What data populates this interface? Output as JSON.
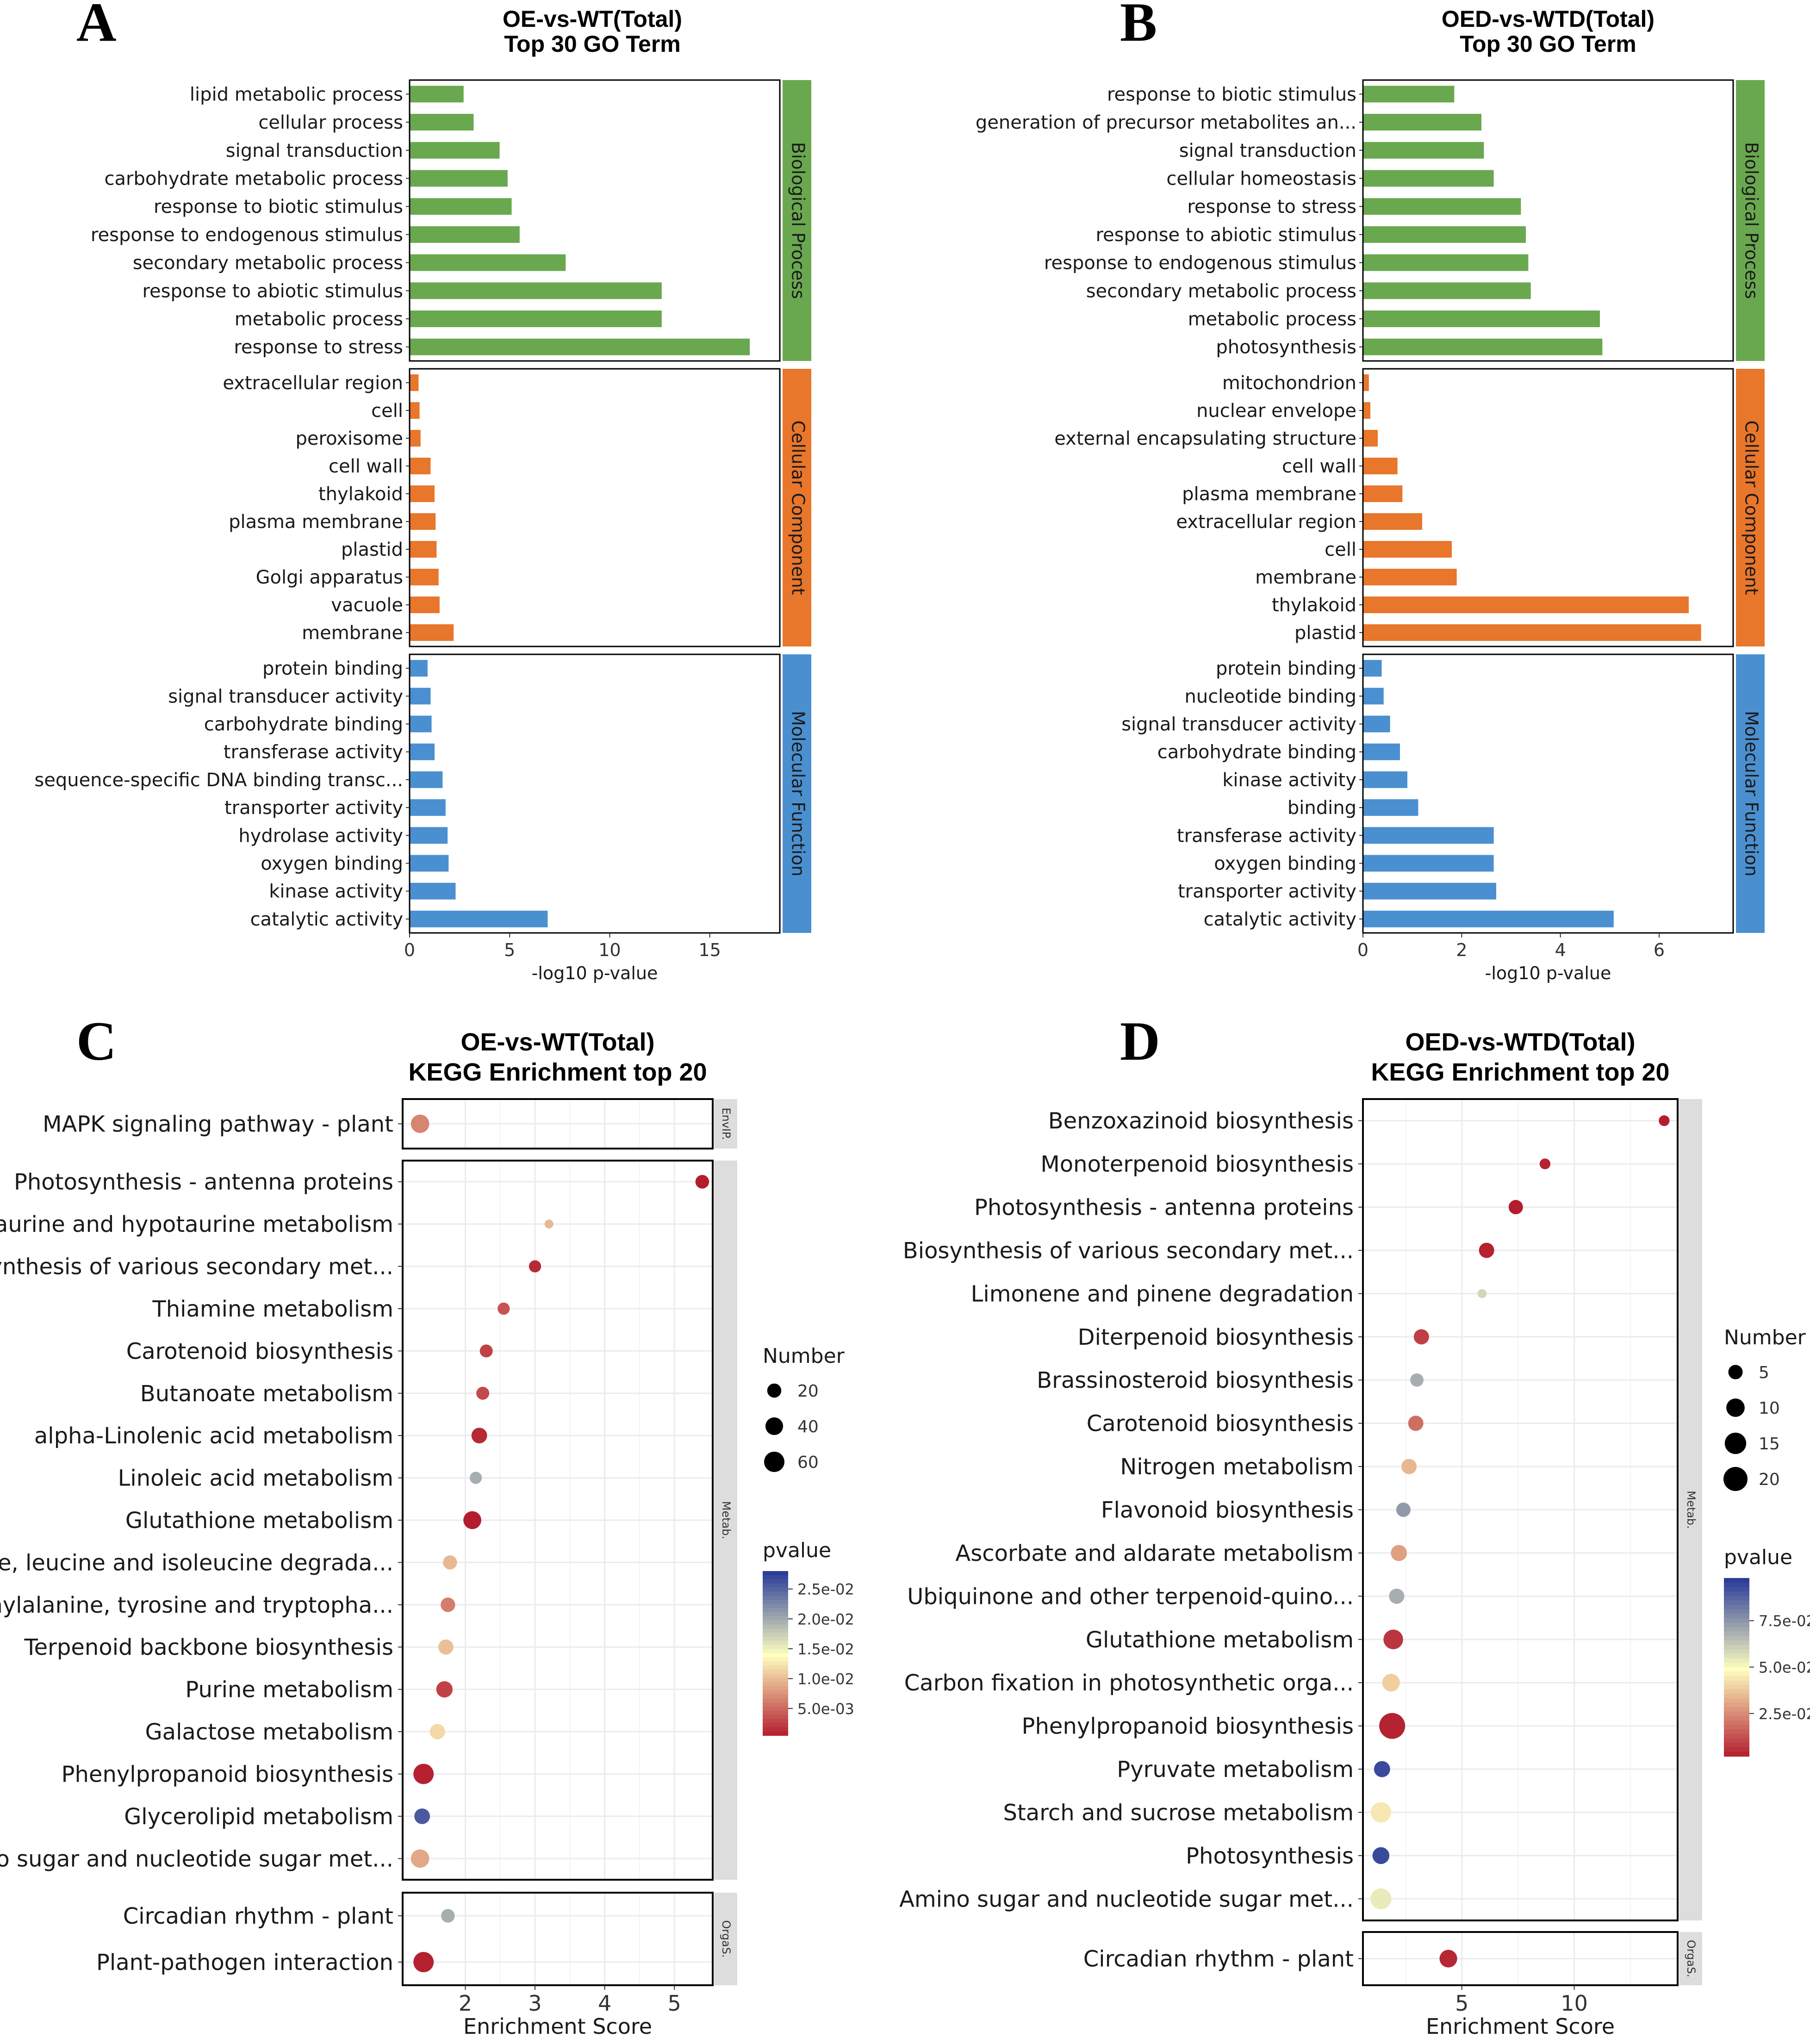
{
  "panels": [
    {
      "letter": "A",
      "title1": "OE-vs-WT(Total)",
      "title2": "Top 30 GO Term"
    },
    {
      "letter": "B",
      "title1": "OED-vs-WTD(Total)",
      "title2": "Top 30 GO Term"
    },
    {
      "letter": "C",
      "title1": "OE-vs-WT(Total)",
      "title2": "KEGG Enrichment top 20"
    },
    {
      "letter": "D",
      "title1": "OED-vs-WTD(Total)",
      "title2": "KEGG Enrichment top 20"
    }
  ],
  "colors": {
    "bp": "#6aa84f",
    "cc": "#e8762b",
    "mf": "#4a90d0",
    "strip": "#dddddd",
    "grid": "#ebebeb",
    "pv_low": "#b2182b",
    "pv_mid": "#ffffbf",
    "pv_high": "#2c3d99"
  },
  "chart_data": [
    {
      "type": "bar",
      "orientation": "horizontal",
      "title": "OE-vs-WT(Total) Top 30 GO Term",
      "xlabel": "-log10 p-value",
      "xlim": [
        0,
        18.5
      ],
      "xticks": [
        0,
        5,
        10,
        15
      ],
      "facets": [
        {
          "name": "Biological Process",
          "color_key": "bp",
          "terms": [
            "lipid metabolic process",
            "cellular process",
            "signal transduction",
            "carbohydrate metabolic process",
            "response to biotic stimulus",
            "response to endogenous stimulus",
            "secondary metabolic process",
            "response to abiotic stimulus",
            "metabolic process",
            "response to stress"
          ],
          "values": [
            2.7,
            3.2,
            4.5,
            4.9,
            5.1,
            5.5,
            7.8,
            12.6,
            12.6,
            17
          ]
        },
        {
          "name": "Cellular Component",
          "color_key": "cc",
          "terms": [
            "extracellular region",
            "cell",
            "peroxisome",
            "cell wall",
            "thylakoid",
            "plasma membrane",
            "plastid",
            "Golgi apparatus",
            "vacuole",
            "membrane"
          ],
          "values": [
            0.45,
            0.5,
            0.55,
            1.05,
            1.25,
            1.3,
            1.35,
            1.45,
            1.5,
            2.2
          ]
        },
        {
          "name": "Molecular Function",
          "color_key": "mf",
          "terms": [
            "protein binding",
            "signal transducer activity",
            "carbohydrate binding",
            "transferase activity",
            "sequence-specific DNA binding transc...",
            "transporter activity",
            "hydrolase activity",
            "oxygen binding",
            "kinase activity",
            "catalytic activity"
          ],
          "values": [
            0.9,
            1.05,
            1.1,
            1.25,
            1.65,
            1.8,
            1.9,
            1.95,
            2.3,
            6.9
          ]
        }
      ]
    },
    {
      "type": "bar",
      "orientation": "horizontal",
      "title": "OED-vs-WTD(Total) Top 30 GO Term",
      "xlabel": "-log10 p-value",
      "xlim": [
        0,
        7.5
      ],
      "xticks": [
        0,
        2,
        4,
        6
      ],
      "facets": [
        {
          "name": "Biological Process",
          "color_key": "bp",
          "terms": [
            "response to biotic stimulus",
            "generation of precursor metabolites an...",
            "signal transduction",
            "cellular homeostasis",
            "response to stress",
            "response to abiotic stimulus",
            "response to endogenous stimulus",
            "secondary metabolic process",
            "metabolic process",
            "photosynthesis"
          ],
          "values": [
            1.85,
            2.4,
            2.45,
            2.65,
            3.2,
            3.3,
            3.35,
            3.4,
            4.8,
            4.85
          ]
        },
        {
          "name": "Cellular Component",
          "color_key": "cc",
          "terms": [
            "mitochondrion",
            "nuclear envelope",
            "external encapsulating structure",
            "cell wall",
            "plasma membrane",
            "extracellular region",
            "cell",
            "membrane",
            "thylakoid",
            "plastid"
          ],
          "values": [
            0.12,
            0.15,
            0.3,
            0.7,
            0.8,
            1.2,
            1.8,
            1.9,
            6.6,
            6.85
          ]
        },
        {
          "name": "Molecular Function",
          "color_key": "mf",
          "terms": [
            "protein binding",
            "nucleotide binding",
            "signal transducer activity",
            "carbohydrate binding",
            "kinase activity",
            "binding",
            "transferase activity",
            "oxygen binding",
            "transporter activity",
            "catalytic activity"
          ],
          "values": [
            0.38,
            0.42,
            0.55,
            0.75,
            0.9,
            1.12,
            2.65,
            2.65,
            2.7,
            5.08
          ]
        }
      ]
    },
    {
      "type": "scatter",
      "title": "OE-vs-WT(Total) KEGG Enrichment top 20",
      "xlabel": "Enrichment Score",
      "xlim": [
        1.1,
        5.55
      ],
      "xticks": [
        2,
        3,
        4,
        5
      ],
      "legend_number_title": "Number",
      "size_legend": [
        20,
        40,
        60
      ],
      "size_max_value": 60,
      "legend_pvalue_title": "pvalue",
      "pvalue_range": [
        0.0005,
        0.028
      ],
      "color_ticks": [
        "2.5e-02",
        "2.0e-02",
        "1.5e-02",
        "1.0e-02",
        "5.0e-03"
      ],
      "color_tick_values": [
        0.025,
        0.02,
        0.015,
        0.01,
        0.005
      ],
      "facets": [
        {
          "name": "EnvIP.",
          "points": [
            {
              "term": "MAPK signaling pathway - plant",
              "x": 1.35,
              "number": 45,
              "pvalue": 0.007
            }
          ]
        },
        {
          "name": "Metab.",
          "points": [
            {
              "term": "Photosynthesis - antenna proteins",
              "x": 5.4,
              "number": 18,
              "pvalue": 0.0008
            },
            {
              "term": "Taurine and hypotaurine metabolism",
              "x": 3.2,
              "number": 3,
              "pvalue": 0.01
            },
            {
              "term": "Biosynthesis of various secondary met...",
              "x": 3.0,
              "number": 12,
              "pvalue": 0.0015
            },
            {
              "term": "Thiamine metabolism",
              "x": 2.55,
              "number": 12,
              "pvalue": 0.004
            },
            {
              "term": "Carotenoid biosynthesis",
              "x": 2.3,
              "number": 15,
              "pvalue": 0.003
            },
            {
              "term": "Butanoate metabolism",
              "x": 2.25,
              "number": 15,
              "pvalue": 0.0035
            },
            {
              "term": "alpha-Linolenic acid metabolism",
              "x": 2.2,
              "number": 28,
              "pvalue": 0.0015
            },
            {
              "term": "Linoleic acid metabolism",
              "x": 2.15,
              "number": 12,
              "pvalue": 0.02
            },
            {
              "term": "Glutathione metabolism",
              "x": 2.1,
              "number": 42,
              "pvalue": 0.0008
            },
            {
              "term": "Valine, leucine and isoleucine degrada...",
              "x": 1.78,
              "number": 20,
              "pvalue": 0.01
            },
            {
              "term": "Phenylalanine, tyrosine and tryptopha...",
              "x": 1.75,
              "number": 22,
              "pvalue": 0.0065
            },
            {
              "term": "Terpenoid backbone biosynthesis",
              "x": 1.72,
              "number": 25,
              "pvalue": 0.0105
            },
            {
              "term": "Purine metabolism",
              "x": 1.7,
              "number": 32,
              "pvalue": 0.003
            },
            {
              "term": "Galactose metabolism",
              "x": 1.6,
              "number": 26,
              "pvalue": 0.012
            },
            {
              "term": "Phenylpropanoid biosynthesis",
              "x": 1.4,
              "number": 60,
              "pvalue": 0.001
            },
            {
              "term": "Glycerolipid metabolism",
              "x": 1.38,
              "number": 28,
              "pvalue": 0.026
            },
            {
              "term": "Amino sugar and nucleotide sugar met...",
              "x": 1.35,
              "number": 45,
              "pvalue": 0.009
            }
          ]
        },
        {
          "name": "OrgaS.",
          "points": [
            {
              "term": "Circadian rhythm - plant",
              "x": 1.75,
              "number": 18,
              "pvalue": 0.02
            },
            {
              "term": "Plant-pathogen interaction",
              "x": 1.4,
              "number": 60,
              "pvalue": 0.001
            }
          ]
        }
      ]
    },
    {
      "type": "scatter",
      "title": "OED-vs-WTD(Total) KEGG Enrichment top 20",
      "xlabel": "Enrichment Score",
      "xlim": [
        0.6,
        14.6
      ],
      "xticks": [
        5,
        10
      ],
      "legend_number_title": "Number",
      "size_legend": [
        5,
        10,
        15,
        20
      ],
      "size_max_value": 20,
      "legend_pvalue_title": "pvalue",
      "pvalue_range": [
        0.002,
        0.098
      ],
      "color_ticks": [
        "7.5e-02",
        "5.0e-02",
        "2.5e-02"
      ],
      "color_tick_values": [
        0.075,
        0.05,
        0.025
      ],
      "facets": [
        {
          "name": "Metab.",
          "points": [
            {
              "term": "Benzoxazinoid biosynthesis",
              "x": 14.0,
              "number": 2,
              "pvalue": 0.003
            },
            {
              "term": "Monoterpenoid biosynthesis",
              "x": 8.7,
              "number": 2,
              "pvalue": 0.004
            },
            {
              "term": "Photosynthesis - antenna proteins",
              "x": 7.4,
              "number": 5,
              "pvalue": 0.003
            },
            {
              "term": "Biosynthesis of various secondary met...",
              "x": 6.1,
              "number": 6,
              "pvalue": 0.004
            },
            {
              "term": "Limonene and pinene degradation",
              "x": 5.9,
              "number": 1,
              "pvalue": 0.06
            },
            {
              "term": "Diterpenoid biosynthesis",
              "x": 3.2,
              "number": 6,
              "pvalue": 0.01
            },
            {
              "term": "Brassinosteroid biosynthesis",
              "x": 3.0,
              "number": 4,
              "pvalue": 0.07
            },
            {
              "term": "Carotenoid biosynthesis",
              "x": 2.95,
              "number": 6,
              "pvalue": 0.02
            },
            {
              "term": "Nitrogen metabolism",
              "x": 2.65,
              "number": 6,
              "pvalue": 0.035
            },
            {
              "term": "Flavonoid biosynthesis",
              "x": 2.4,
              "number": 5,
              "pvalue": 0.075
            },
            {
              "term": "Ascorbate and aldarate metabolism",
              "x": 2.2,
              "number": 7,
              "pvalue": 0.03
            },
            {
              "term": "Ubiquinone and other terpenoid-quino...",
              "x": 2.1,
              "number": 6,
              "pvalue": 0.07
            },
            {
              "term": "Glutathione metabolism",
              "x": 1.95,
              "number": 12,
              "pvalue": 0.008
            },
            {
              "term": "Carbon fixation in photosynthetic orga...",
              "x": 1.85,
              "number": 9,
              "pvalue": 0.04
            },
            {
              "term": "Phenylpropanoid biosynthesis",
              "x": 1.9,
              "number": 24,
              "pvalue": 0.004
            },
            {
              "term": "Pyruvate metabolism",
              "x": 1.45,
              "number": 7,
              "pvalue": 0.095
            },
            {
              "term": "Starch and sucrose metabolism",
              "x": 1.4,
              "number": 13,
              "pvalue": 0.045
            },
            {
              "term": "Photosynthesis",
              "x": 1.4,
              "number": 8,
              "pvalue": 0.095
            },
            {
              "term": "Amino sugar and nucleotide sugar met...",
              "x": 1.4,
              "number": 14,
              "pvalue": 0.055
            }
          ]
        },
        {
          "name": "OrgaS.",
          "points": [
            {
              "term": "Circadian rhythm - plant",
              "x": 4.4,
              "number": 9,
              "pvalue": 0.005
            }
          ]
        }
      ]
    }
  ]
}
